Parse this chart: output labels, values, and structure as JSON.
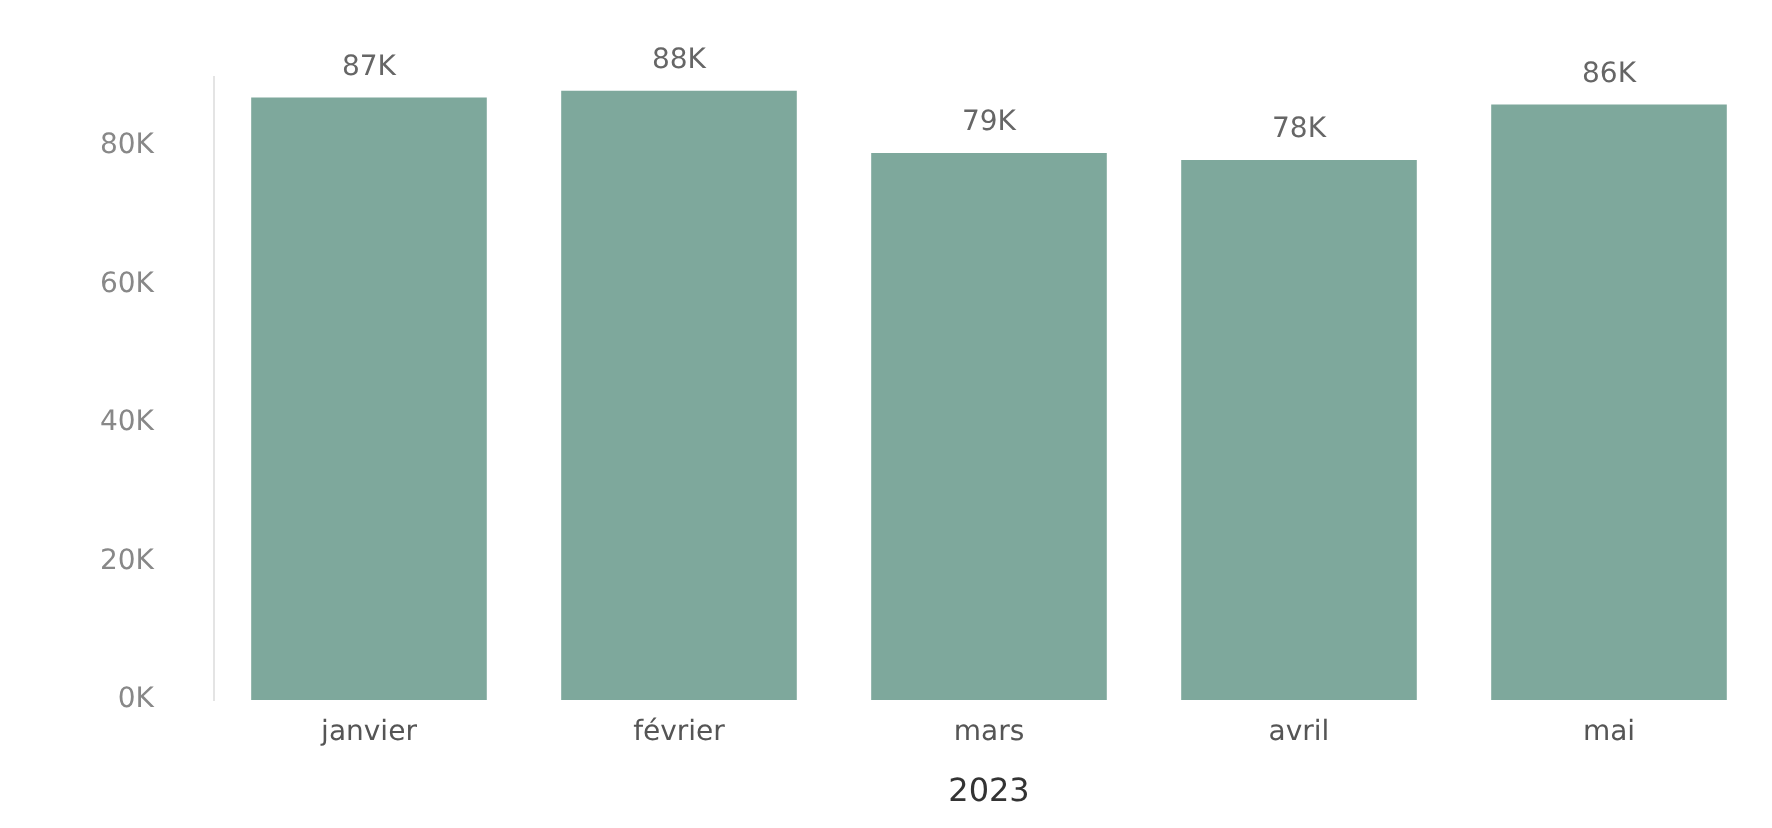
{
  "chart_data": {
    "type": "bar",
    "xlabel": "2023",
    "categories": [
      "janvier",
      "février",
      "mars",
      "avril",
      "mai"
    ],
    "values": [
      87000,
      88000,
      79000,
      78000,
      86000
    ],
    "value_labels": [
      "87K",
      "88K",
      "79K",
      "78K",
      "86K"
    ],
    "color": "#7ea89c",
    "ylim": [
      0,
      90000
    ],
    "yticks": [
      {
        "value": 0,
        "label": "0K"
      },
      {
        "value": 20000,
        "label": "20K"
      },
      {
        "value": 40000,
        "label": "40K"
      },
      {
        "value": 60000,
        "label": "60K"
      },
      {
        "value": 80000,
        "label": "80K"
      }
    ],
    "grid": false,
    "legend": false
  }
}
